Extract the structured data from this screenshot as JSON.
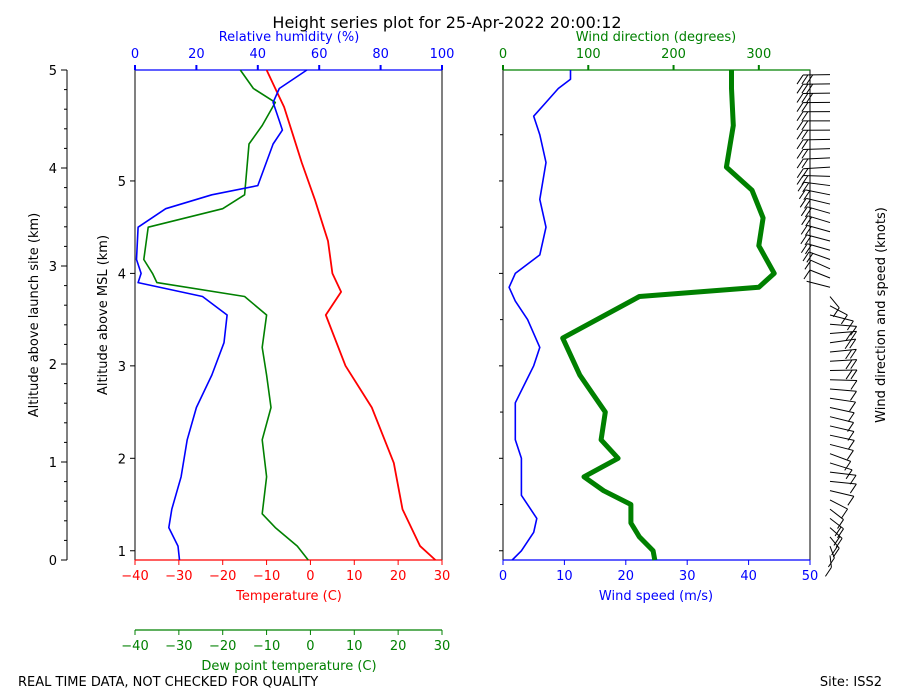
{
  "title": "Height series plot for 25-Apr-2022 20:00:12",
  "footer_left": "REAL TIME DATA, NOT CHECKED FOR QUALITY",
  "footer_right": "Site: ISS2",
  "colors": {
    "temperature": "#ff0000",
    "dewpoint": "#008000",
    "rh": "#0000ff",
    "wind_speed": "#0000ff",
    "wind_direction": "#008000",
    "barbs": "#000000",
    "text": "#000000"
  },
  "chart_data": [
    {
      "type": "line",
      "panel": "thermodynamic",
      "ylabel_left": "Altitude above launch site (km)",
      "ylabel_inner": "Altitude above MSL (km)",
      "yticks_left": [
        "0",
        "1",
        "2",
        "3",
        "4",
        "5"
      ],
      "yticks_inner": [
        "1",
        "2",
        "3",
        "4",
        "5"
      ],
      "ylim_agl": [
        0,
        5
      ],
      "ylim_msl": [
        0.9,
        6.2
      ],
      "temperature_axis": {
        "label": "Temperature (C)",
        "range": [
          -40,
          30
        ],
        "ticks": [
          "−40",
          "−30",
          "−20",
          "−10",
          "0",
          "10",
          "20",
          "30"
        ]
      },
      "dewpoint_axis": {
        "label": "Dew point temperature (C)",
        "range": [
          -40,
          30
        ],
        "ticks": [
          "−40",
          "−30",
          "−20",
          "−10",
          "0",
          "10",
          "20",
          "30"
        ]
      },
      "rh_axis": {
        "label": "Relative humidity (%)",
        "range": [
          0,
          100
        ],
        "ticks": [
          "0",
          "20",
          "40",
          "60",
          "80",
          "100"
        ]
      },
      "series": [
        {
          "name": "Temperature",
          "color": "#ff0000",
          "points": [
            [
              28.5,
              0.9
            ],
            [
              25,
              1.05
            ],
            [
              21,
              1.45
            ],
            [
              19,
              1.95
            ],
            [
              14,
              2.55
            ],
            [
              8,
              3.0
            ],
            [
              3.5,
              3.55
            ],
            [
              7,
              3.8
            ],
            [
              5,
              4.0
            ],
            [
              4,
              4.35
            ],
            [
              3,
              4.5
            ],
            [
              1,
              4.8
            ],
            [
              -2,
              5.2
            ],
            [
              -4,
              5.5
            ],
            [
              -6,
              5.8
            ],
            [
              -8,
              6.0
            ],
            [
              -10,
              6.2
            ]
          ]
        },
        {
          "name": "Dew point",
          "color": "#008000",
          "points": [
            [
              -0.5,
              0.9
            ],
            [
              -3,
              1.05
            ],
            [
              -8,
              1.25
            ],
            [
              -11,
              1.4
            ],
            [
              -10,
              1.8
            ],
            [
              -11,
              2.2
            ],
            [
              -9,
              2.55
            ],
            [
              -10,
              2.9
            ],
            [
              -11,
              3.2
            ],
            [
              -10,
              3.55
            ],
            [
              -15,
              3.75
            ],
            [
              -35,
              3.9
            ],
            [
              -36,
              4.0
            ],
            [
              -38,
              4.15
            ],
            [
              -37,
              4.5
            ],
            [
              -20,
              4.7
            ],
            [
              -15,
              4.85
            ],
            [
              -14,
              5.4
            ],
            [
              -11,
              5.6
            ],
            [
              -8,
              5.85
            ],
            [
              -13,
              6.0
            ],
            [
              -16,
              6.2
            ]
          ]
        },
        {
          "name": "Relative humidity",
          "color": "#0000ff",
          "points": [
            [
              14.5,
              0.9
            ],
            [
              14,
              1.05
            ],
            [
              11,
              1.25
            ],
            [
              12,
              1.45
            ],
            [
              15,
              1.8
            ],
            [
              17,
              2.2
            ],
            [
              20,
              2.55
            ],
            [
              25,
              2.9
            ],
            [
              29,
              3.25
            ],
            [
              30,
              3.55
            ],
            [
              22,
              3.75
            ],
            [
              1,
              3.9
            ],
            [
              2,
              4.0
            ],
            [
              0.5,
              4.15
            ],
            [
              1,
              4.5
            ],
            [
              10,
              4.7
            ],
            [
              25,
              4.85
            ],
            [
              40,
              4.95
            ],
            [
              45,
              5.4
            ],
            [
              48,
              5.55
            ],
            [
              47,
              5.65
            ],
            [
              45,
              5.85
            ],
            [
              47,
              6.0
            ],
            [
              56,
              6.2
            ]
          ]
        }
      ]
    },
    {
      "type": "line",
      "panel": "wind",
      "wind_speed_axis": {
        "label": "Wind speed (m/s)",
        "range": [
          0,
          50
        ],
        "ticks": [
          "0",
          "10",
          "20",
          "30",
          "40",
          "50"
        ]
      },
      "wind_direction_axis": {
        "label": "Wind direction (degrees)",
        "range": [
          0,
          360
        ],
        "ticks": [
          "0",
          "100",
          "200",
          "300"
        ]
      },
      "barb_label": "Wind direction and speed (knots)",
      "ylim_msl": [
        0.9,
        6.2
      ],
      "series": [
        {
          "name": "Wind speed",
          "color": "#0000ff",
          "points": [
            [
              1.5,
              0.9
            ],
            [
              3,
              1.0
            ],
            [
              5,
              1.2
            ],
            [
              5.5,
              1.35
            ],
            [
              3,
              1.6
            ],
            [
              3,
              2.0
            ],
            [
              2,
              2.2
            ],
            [
              2,
              2.6
            ],
            [
              5,
              3.0
            ],
            [
              6,
              3.2
            ],
            [
              4,
              3.5
            ],
            [
              2,
              3.7
            ],
            [
              1,
              3.85
            ],
            [
              2,
              4.0
            ],
            [
              6,
              4.2
            ],
            [
              7,
              4.5
            ],
            [
              6,
              4.8
            ],
            [
              7,
              5.2
            ],
            [
              6,
              5.5
            ],
            [
              5,
              5.7
            ],
            [
              7,
              5.85
            ],
            [
              9,
              6.0
            ],
            [
              11,
              6.1
            ],
            [
              11,
              6.2
            ]
          ]
        },
        {
          "name": "Wind direction",
          "color": "#008000",
          "points": [
            [
              178,
              0.9
            ],
            [
              176,
              1.0
            ],
            [
              160,
              1.15
            ],
            [
              150,
              1.3
            ],
            [
              150,
              1.5
            ],
            [
              118,
              1.65
            ],
            [
              95,
              1.8
            ],
            [
              135,
              2.0
            ],
            [
              115,
              2.2
            ],
            [
              120,
              2.5
            ],
            [
              90,
              2.9
            ],
            [
              70,
              3.3
            ],
            [
              160,
              3.75
            ],
            [
              300,
              3.85
            ],
            [
              318,
              4.0
            ],
            [
              300,
              4.3
            ],
            [
              305,
              4.6
            ],
            [
              292,
              4.9
            ],
            [
              262,
              5.15
            ],
            [
              270,
              5.6
            ],
            [
              268,
              6.0
            ],
            [
              268,
              6.2
            ]
          ]
        }
      ]
    }
  ]
}
